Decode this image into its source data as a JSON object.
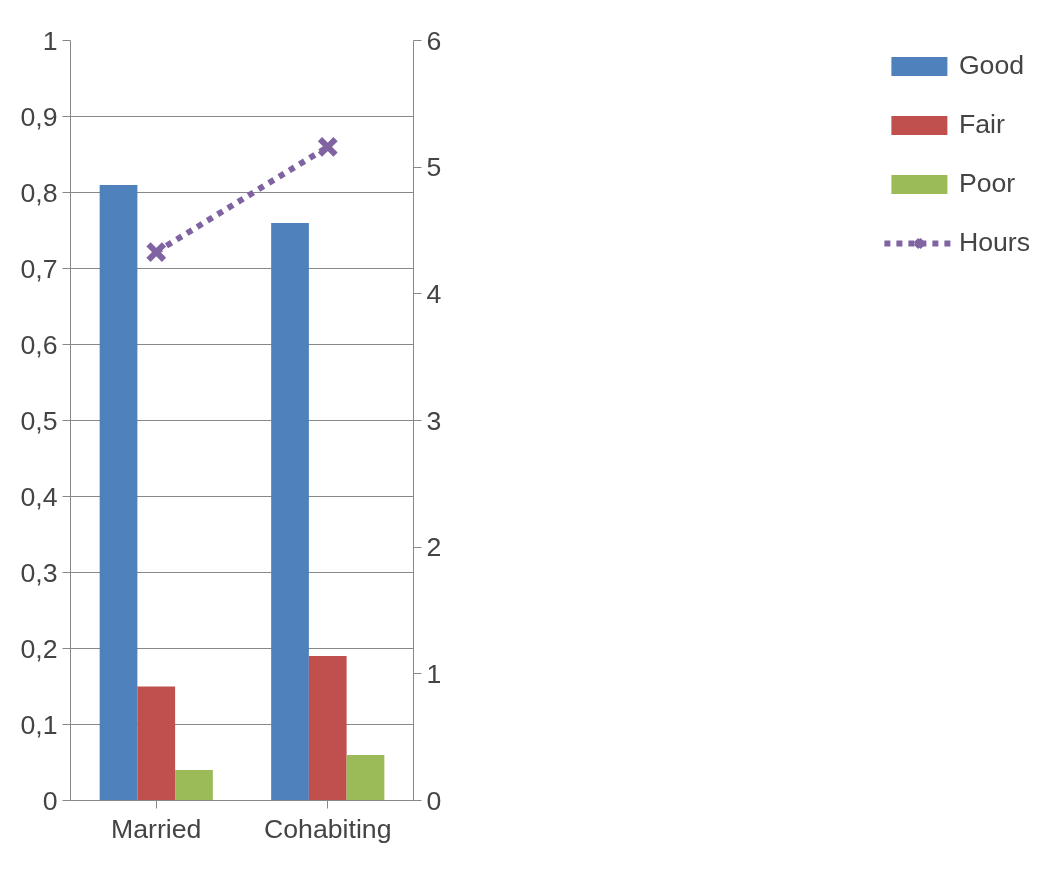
{
  "chart_data": {
    "type": "bar",
    "categories": [
      "Married",
      "Cohabiting"
    ],
    "series": [
      {
        "name": "Good",
        "color": "#4f81bd",
        "values": [
          0.81,
          0.76
        ]
      },
      {
        "name": "Fair",
        "color": "#c0504d",
        "values": [
          0.15,
          0.19
        ]
      },
      {
        "name": "Poor",
        "color": "#9bbb59",
        "values": [
          0.04,
          0.06
        ]
      },
      {
        "name": "Hours",
        "type": "line",
        "axis": "y2",
        "color": "#8064a2",
        "values": [
          4.33,
          5.16
        ],
        "marker": "cross",
        "line_style": "dashed"
      }
    ],
    "ylim": [
      0,
      1
    ],
    "yticks": [
      0,
      {
        "value": 0.1,
        "label": "0,1"
      },
      {
        "value": 0.2,
        "label": "0,2"
      },
      {
        "value": 0.3,
        "label": "0,3"
      },
      {
        "value": 0.4,
        "label": "0,4"
      },
      {
        "value": 0.5,
        "label": "0,5"
      },
      {
        "value": 0.6,
        "label": "0,6"
      },
      {
        "value": 0.7,
        "label": "0,7"
      },
      {
        "value": 0.8,
        "label": "0,8"
      },
      {
        "value": 0.9,
        "label": "0,9"
      },
      1
    ],
    "y2lim": [
      0,
      6
    ],
    "y2ticks": [
      0,
      1,
      2,
      3,
      4,
      5,
      6
    ],
    "grid": "y",
    "legend": "right"
  }
}
